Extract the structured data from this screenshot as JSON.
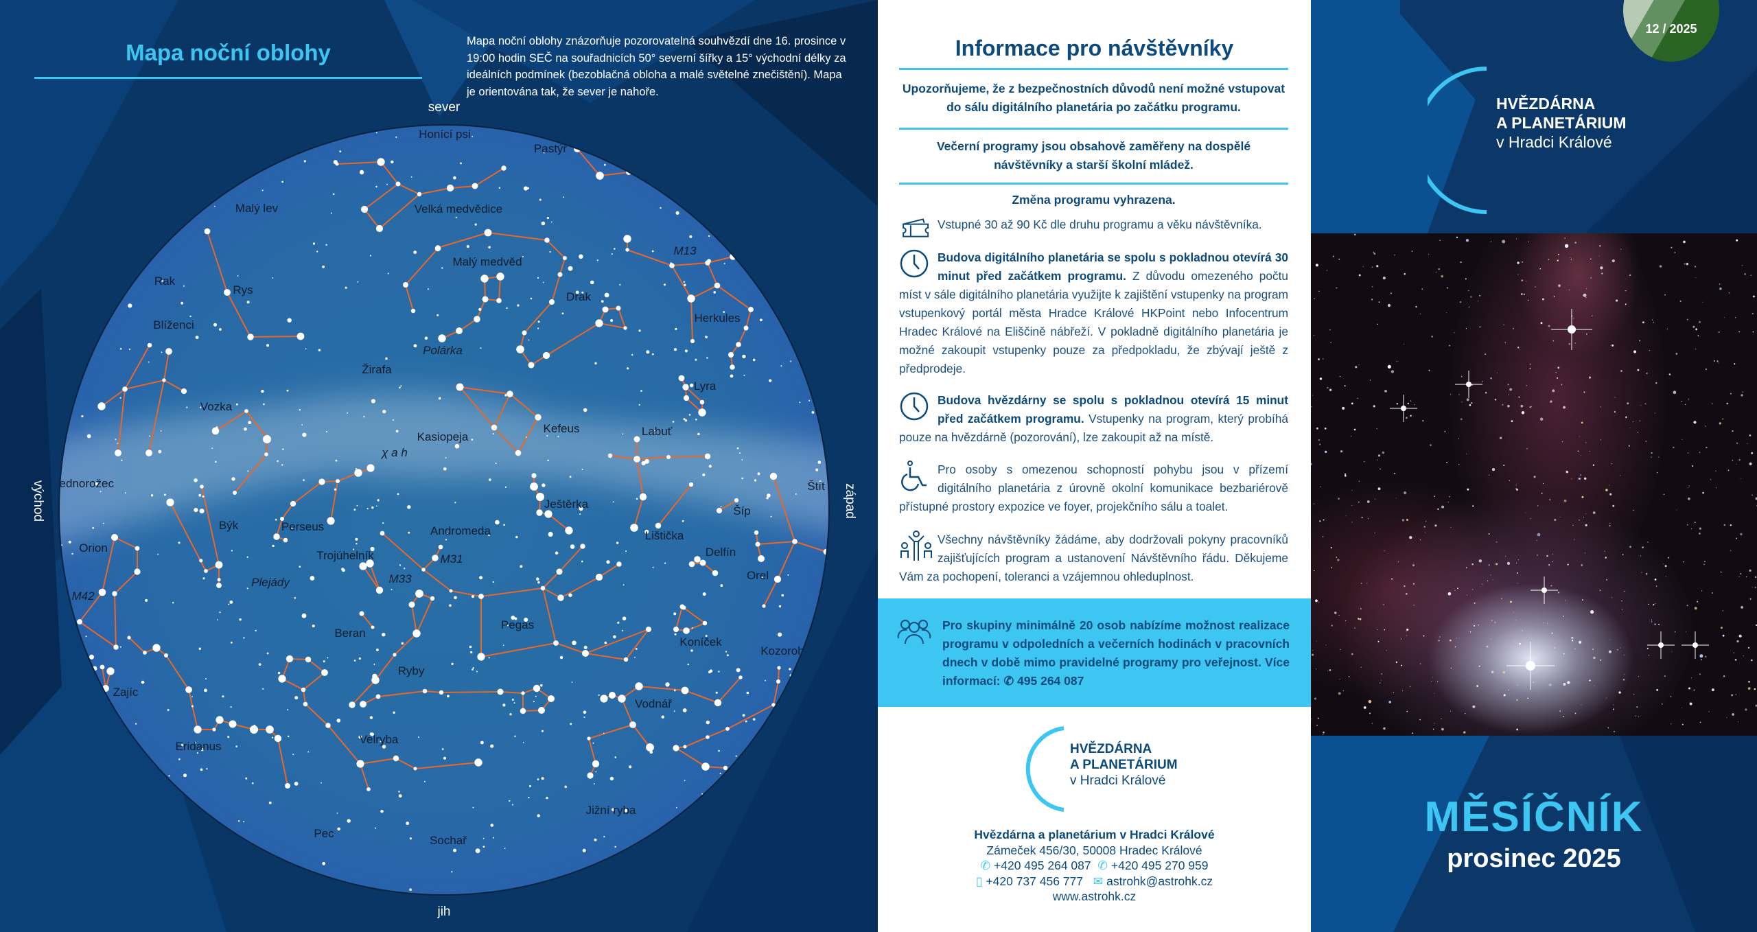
{
  "map": {
    "title": "Mapa noční oblohy",
    "description": "Mapa noční oblohy znázorňuje pozorovatelná souhvězdí dne 16. prosince v 19:00 hodin SEČ na souřadnicích 50° severní šířky a 15° východní délky za ideálních podmínek (bezoblačná obloha a malé světelné znečištění). Mapa je orientována tak, že sever je nahoře.",
    "directions": {
      "north": "sever",
      "south": "jih",
      "east": "východ",
      "west": "západ"
    },
    "labels": [
      "Honící psi",
      "Pastýř",
      "Malý lev",
      "Velká medvědice",
      "Malý medvěd",
      "Rak",
      "Rys",
      "Drak",
      "Herkules",
      "Blíženci",
      "Polárka",
      "Žirafa",
      "Lyra",
      "Vozka",
      "Kefeus",
      "Labuť",
      "Kasiopeja",
      "χ a h",
      "Jednorožec",
      "Štít",
      "Ještěrka",
      "Býk",
      "Perseus",
      "Andromeda",
      "Šíp",
      "Lištička",
      "Orion",
      "Delfín",
      "Trojúhelník",
      "M31",
      "Orel",
      "Plejády",
      "M33",
      "M42",
      "Pegas",
      "Beran",
      "Koníček",
      "Kozoroh",
      "Ryby",
      "Zajíc",
      "Vodnář",
      "Eridanus",
      "Velryba",
      "Jižní ryba",
      "Pec",
      "Sochař",
      "M13"
    ],
    "colors": {
      "sky": "#276aa6",
      "lines": "#e8682a",
      "stars": "#ffffff"
    }
  },
  "info": {
    "title": "Informace pro návštěvníky",
    "warning": "Upozorňujeme, že z bezpečnostních důvodů není možné vstupovat do sálu digitálního planetária po začátku programu.",
    "evening": "Večerní programy jsou obsahově zaměřeny na dospělé návštěvníky a starší školní mládež.",
    "change": "Změna programu vyhrazena.",
    "admission": "Vstupné 30 až 90 Kč dle druhu programu a věku návštěvníka.",
    "planetarium_bold": "Budova digitálního planetária se spolu s pokladnou otevírá 30 minut před začátkem programu.",
    "planetarium_text": " Z důvodu omezeného počtu míst v sále digitálního planetária využijte k zajištění vstupenky na program vstupenkový portál města Hradce Králové HKPoint nebo Infocentrum Hradec Králové na Eliščině nábřeží. V pokladně digitálního planetária je možné zakoupit vstupenky pouze za předpokladu, že zbývají ještě z předprodeje.",
    "observatory_bold": "Budova hvězdárny se spolu s pokladnou otevírá 15 minut před začátkem programu.",
    "observatory_text": " Vstupenky na program, který probíhá pouze na hvězdárně (pozorování), lze zakoupit až na místě.",
    "accessibility": "Pro osoby s omezenou schopností pohybu jsou v přízemí digitálního planetária z úrovně okolní komunikace bezbariérově přístupné prostory expozice ve foyer, projekčního sálu a toalet.",
    "rules": "Všechny návštěvníky žádáme, aby dodržovali pokyny pracovníků zajišťujících program a ustanovení Návštěvního řádu. Děkujeme Vám za pochopení, toleranci a vzájemnou ohleduplnost.",
    "groups": "Pro skupiny minimálně 20 osob nabízíme možnost realizace programu v odpoledních a večerních hodinách v pracovních dnech v době mimo pravidelné programy pro veřejnost. Více informací:",
    "groups_phone": "495 264 087",
    "accent": "#3ec6f2"
  },
  "logo": {
    "line1": "HVĚZDÁRNA",
    "line2": "A PLANETÁRIUM",
    "line3": "v Hradci Králové"
  },
  "contact": {
    "name": "Hvězdárna a planetárium v Hradci Králové",
    "address": "Zámeček 456/30, 50008 Hradec Králové",
    "phone1": "+420 495 264 087",
    "phone2": "+420 495 270 959",
    "mobile": "+420 737 456 777",
    "email": "astrohk@astrohk.cz",
    "web": "www.astrohk.cz"
  },
  "cover": {
    "issue": "12 / 2025",
    "title": "MĚSÍČNÍK",
    "subtitle": "prosinec 2025"
  }
}
